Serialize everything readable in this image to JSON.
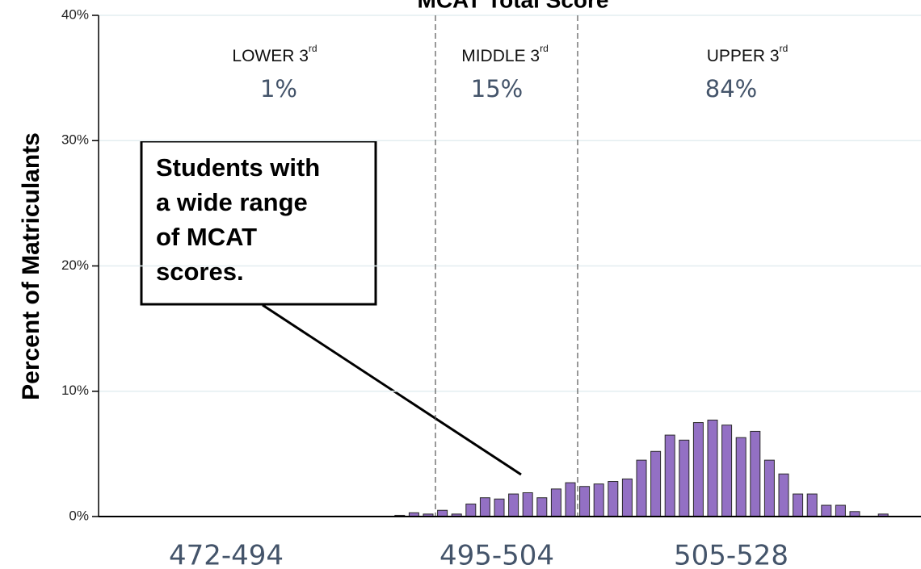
{
  "chart_data": {
    "type": "bar",
    "title": "MCAT Total Score",
    "y_label": "Percent of Matriculants",
    "categories": [
      null,
      null,
      null,
      null,
      null,
      null,
      null,
      null,
      null,
      null,
      null,
      null,
      null,
      null,
      null,
      null,
      null,
      null,
      null,
      null,
      null,
      null,
      null,
      null,
      null,
      null,
      null,
      null,
      null,
      null,
      null,
      null,
      null,
      null,
      null,
      null,
      null,
      null,
      null,
      null,
      null,
      null,
      null,
      null,
      null,
      null,
      null,
      null,
      null,
      null,
      null,
      null,
      null,
      null,
      null,
      null,
      null
    ],
    "values": [
      0,
      0,
      0,
      0,
      0,
      0,
      0,
      0,
      0,
      0,
      0,
      0,
      0,
      0,
      0,
      0,
      0,
      0,
      0,
      0,
      0.1,
      0.3,
      0.2,
      0.5,
      0.2,
      1.0,
      1.5,
      1.4,
      1.8,
      1.9,
      1.5,
      2.2,
      2.7,
      2.4,
      2.6,
      2.8,
      3.0,
      4.5,
      5.2,
      6.5,
      6.1,
      7.5,
      7.7,
      7.3,
      6.3,
      6.8,
      4.5,
      3.4,
      1.8,
      1.8,
      0.9,
      0.9,
      0.4,
      0,
      0.2,
      0,
      0
    ],
    "color": "#9370c4",
    "ylim": [
      0,
      40
    ],
    "yticks": [
      {
        "value": 0,
        "label": "0%"
      },
      {
        "value": 10,
        "label": "10%"
      },
      {
        "value": 20,
        "label": "20%"
      },
      {
        "value": 30,
        "label": "30%"
      },
      {
        "value": 40,
        "label": "40%"
      }
    ],
    "grid": true,
    "regions": [
      {
        "name": "LOWER 3",
        "sup": "rd",
        "share": "1%",
        "range": "472-494"
      },
      {
        "name": "MIDDLE 3",
        "sup": "rd",
        "share": "15%",
        "range": "495-504"
      },
      {
        "name": "UPPER 3",
        "sup": "rd",
        "share": "84%",
        "range": "505-528"
      }
    ],
    "callout": [
      "Students with",
      "a wide range",
      "of MCAT",
      "scores."
    ]
  }
}
